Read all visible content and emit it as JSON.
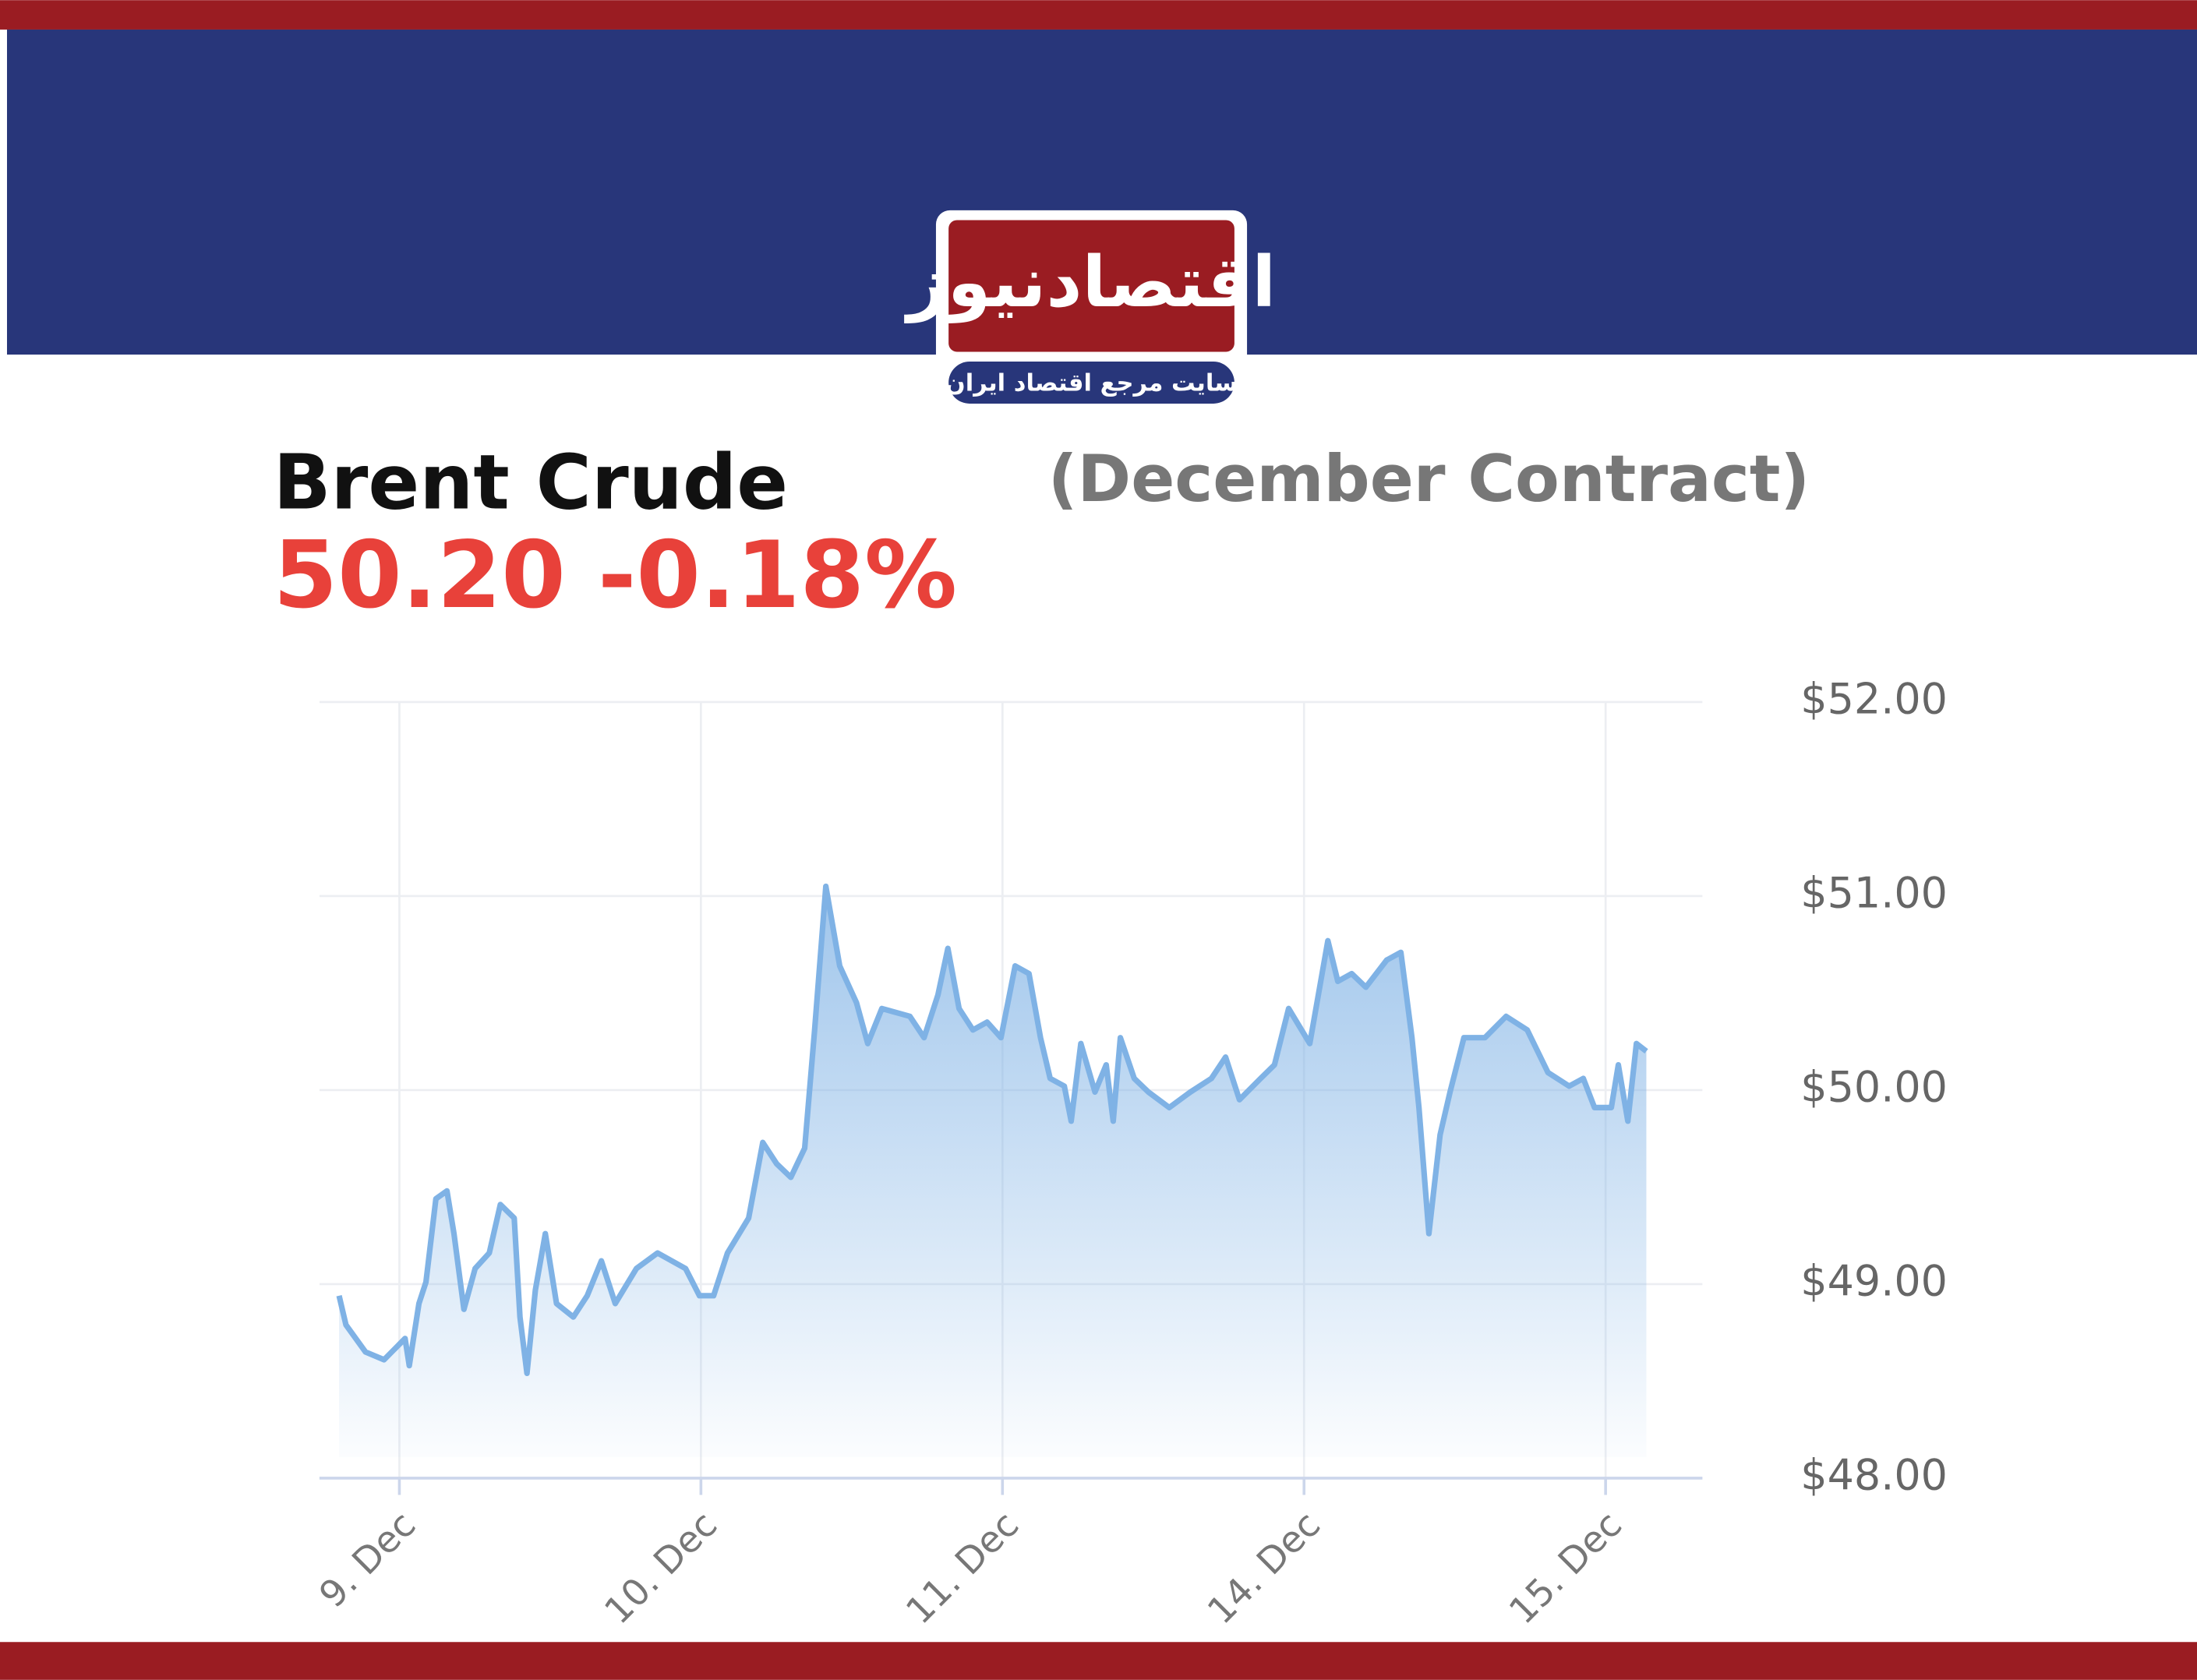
{
  "header": {
    "logo_text": "اقتصادنیوز",
    "tagline": "سایت مرجع اقتصاد ایران"
  },
  "chart_data": {
    "type": "area",
    "title": "Brent Crude",
    "subtitle": "(December Contract)",
    "headline": "50.20 -0.18%",
    "color": "#7fb2e5",
    "x": [
      -0.2,
      -0.177,
      -0.112,
      -0.051,
      0.019,
      0.033,
      0.065,
      0.088,
      0.121,
      0.158,
      0.181,
      0.214,
      0.251,
      0.298,
      0.335,
      0.381,
      0.4,
      0.423,
      0.451,
      0.484,
      0.521,
      0.577,
      0.623,
      0.67,
      0.716,
      0.786,
      0.856,
      0.949,
      0.995,
      1.042,
      1.088,
      1.158,
      1.205,
      1.251,
      1.298,
      1.344,
      1.377,
      1.414,
      1.46,
      1.516,
      1.553,
      1.6,
      1.693,
      1.74,
      1.786,
      1.819,
      1.856,
      1.902,
      1.949,
      1.995,
      2.042,
      2.088,
      2.126,
      2.158,
      2.205,
      2.228,
      2.26,
      2.307,
      2.344,
      2.367,
      2.391,
      2.437,
      2.484,
      2.553,
      2.623,
      2.693,
      2.74,
      2.786,
      2.856,
      2.902,
      2.949,
      3.019,
      3.079,
      3.112,
      3.158,
      3.205,
      3.274,
      3.321,
      3.358,
      3.381,
      3.414,
      3.451,
      3.484,
      3.53,
      3.6,
      3.67,
      3.74,
      3.809,
      3.879,
      3.926,
      3.963,
      4.019,
      4.042,
      4.074,
      4.102,
      4.135
    ],
    "values": [
      48.94,
      48.79,
      48.65,
      48.61,
      48.72,
      48.58,
      48.9,
      49.01,
      49.44,
      49.48,
      49.26,
      48.87,
      49.08,
      49.16,
      49.41,
      49.34,
      48.83,
      48.54,
      48.97,
      49.26,
      48.9,
      48.83,
      48.94,
      49.12,
      48.9,
      49.08,
      49.16,
      49.08,
      48.94,
      48.94,
      49.16,
      49.34,
      49.73,
      49.62,
      49.55,
      49.7,
      50.31,
      51.05,
      50.64,
      50.45,
      50.24,
      50.42,
      50.38,
      50.27,
      50.49,
      50.73,
      50.42,
      50.31,
      50.35,
      50.27,
      50.64,
      50.6,
      50.27,
      50.06,
      50.02,
      49.84,
      50.24,
      49.99,
      50.13,
      49.84,
      50.27,
      50.06,
      49.99,
      49.91,
      49.99,
      50.06,
      50.17,
      49.95,
      50.06,
      50.13,
      50.42,
      50.24,
      50.77,
      50.56,
      50.6,
      50.53,
      50.67,
      50.71,
      50.27,
      49.91,
      49.26,
      49.77,
      49.99,
      50.27,
      50.27,
      50.38,
      50.31,
      50.09,
      50.02,
      50.06,
      49.91,
      49.91,
      50.13,
      49.84,
      50.24,
      50.2
    ],
    "xlim": [
      -0.265,
      4.321
    ],
    "xticks": [
      {
        "value": 0,
        "label": "9. Dec"
      },
      {
        "value": 1,
        "label": "10. Dec"
      },
      {
        "value": 2,
        "label": "11. Dec"
      },
      {
        "value": 3,
        "label": "14. Dec"
      },
      {
        "value": 4,
        "label": "15. Dec"
      }
    ],
    "ylim": [
      48,
      52
    ],
    "yticks": [
      {
        "value": 48,
        "label": "$48.00"
      },
      {
        "value": 49,
        "label": "$49.00"
      },
      {
        "value": 50,
        "label": "$50.00"
      },
      {
        "value": 51,
        "label": "$51.00"
      },
      {
        "value": 52,
        "label": "$52.00"
      }
    ],
    "grid": true
  }
}
